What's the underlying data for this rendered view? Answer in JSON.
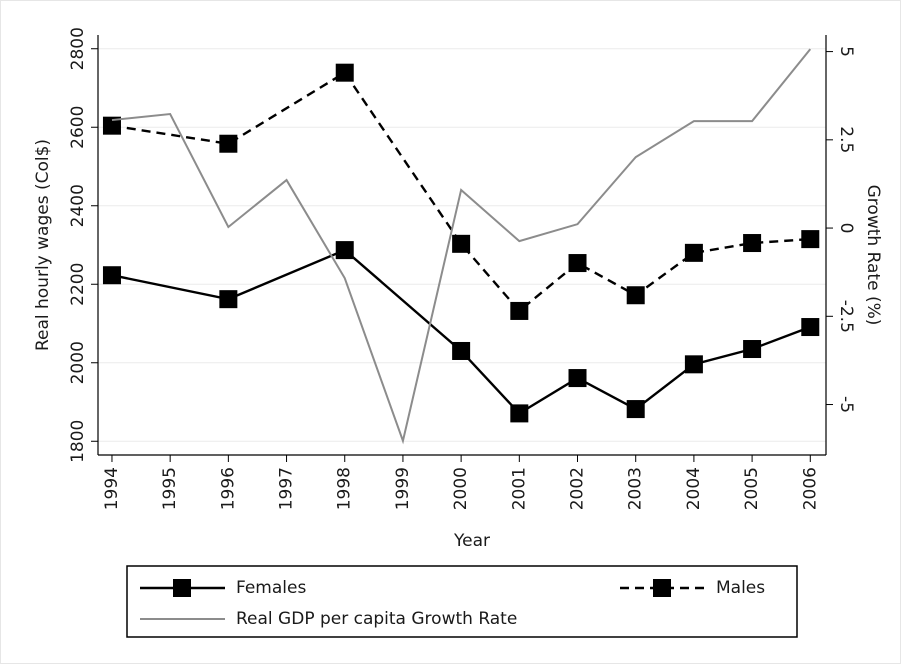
{
  "chart_data": {
    "type": "line",
    "x_label": "Year",
    "y_label": "Real hourly wages (Col$)",
    "y2_label": "Growth Rate (%)",
    "xlim": [
      1993.76,
      2006.27
    ],
    "xticks": [
      1994,
      1995,
      1996,
      1997,
      1998,
      1999,
      2000,
      2001,
      2002,
      2003,
      2004,
      2005,
      2006
    ],
    "ylim": [
      1765,
      2835
    ],
    "yticks": [
      1800,
      2000,
      2200,
      2400,
      2600,
      2800
    ],
    "y2lim": [
      -6.43,
      5.47
    ],
    "y2ticks": [
      -5,
      -2.5,
      0,
      2.5,
      5
    ],
    "grid": true,
    "legend": "bottom",
    "series": [
      {
        "name": "Females",
        "color": "#000000",
        "dash": "solid",
        "marker": "square",
        "x": [
          1994,
          1996,
          1998,
          2000,
          2001,
          2002,
          2003,
          2004,
          2005,
          2006
        ],
        "values": [
          2223,
          2162,
          2287,
          2030,
          1871,
          1961,
          1882,
          1996,
          2035,
          2091
        ]
      },
      {
        "name": "Males",
        "color": "#000000",
        "dash": "dashed",
        "marker": "square",
        "x": [
          1994,
          1996,
          1998,
          2000,
          2001,
          2002,
          2003,
          2004,
          2005,
          2006
        ],
        "values": [
          2604,
          2558,
          2739,
          2303,
          2132,
          2254,
          2172,
          2280,
          2305,
          2315
        ]
      },
      {
        "name": "Real GDP per capita Growth Rate",
        "color": "#8c8c8c",
        "dash": "solid",
        "marker": "none",
        "axis": "y2",
        "x": [
          1994,
          1995,
          1996,
          1997,
          1998,
          1999,
          2000,
          2001,
          2002,
          2003,
          2004,
          2005,
          2006
        ],
        "values": [
          3.06,
          3.23,
          0.03,
          1.36,
          -1.42,
          -6.03,
          1.08,
          -0.37,
          0.11,
          2.01,
          3.03,
          3.03,
          5.07
        ]
      }
    ]
  }
}
